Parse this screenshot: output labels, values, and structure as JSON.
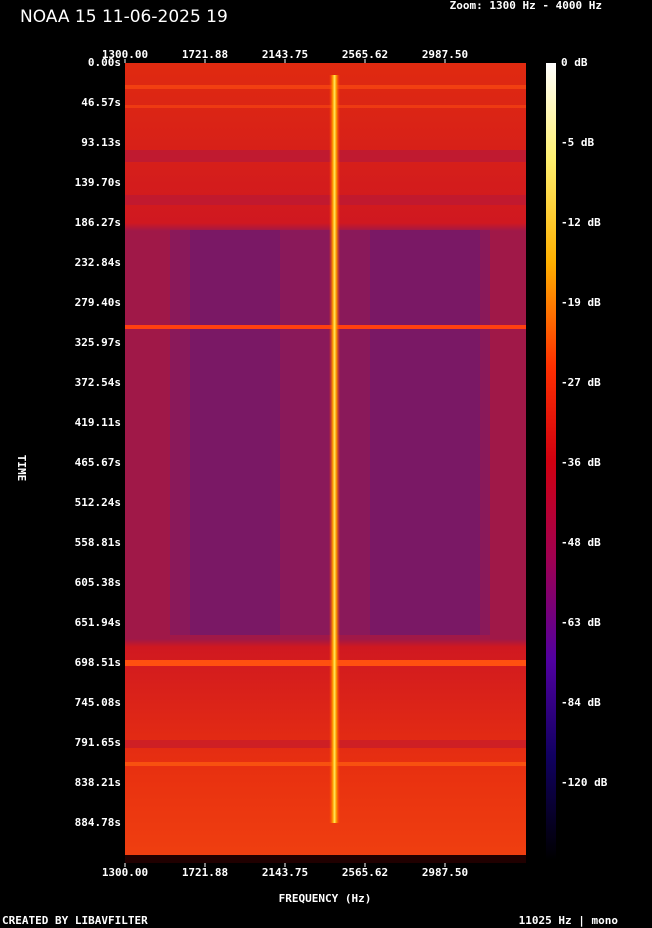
{
  "header": {
    "title": "NOAA 15 11-06-2025 19",
    "zoom": "Zoom: 1300 Hz - 4000 Hz"
  },
  "axes": {
    "y_label": "TIME",
    "x_label": "FREQUENCY (Hz)",
    "x_ticks": [
      "1300.00",
      "1721.88",
      "2143.75",
      "2565.62",
      "2987.50"
    ],
    "y_ticks": [
      "0.00s",
      "46.57s",
      "93.13s",
      "139.70s",
      "186.27s",
      "232.84s",
      "279.40s",
      "325.97s",
      "372.54s",
      "419.11s",
      "465.67s",
      "512.24s",
      "558.81s",
      "605.38s",
      "651.94s",
      "698.51s",
      "745.08s",
      "791.65s",
      "838.21s",
      "884.78s"
    ]
  },
  "colorbar": {
    "labels": [
      "0 dB",
      "-5 dB",
      "-12 dB",
      "-19 dB",
      "-27 dB",
      "-36 dB",
      "-48 dB",
      "-63 dB",
      "-84 dB",
      "-120 dB"
    ]
  },
  "footer": {
    "left": "CREATED BY LIBAVFILTER",
    "right": "11025 Hz | mono"
  }
}
